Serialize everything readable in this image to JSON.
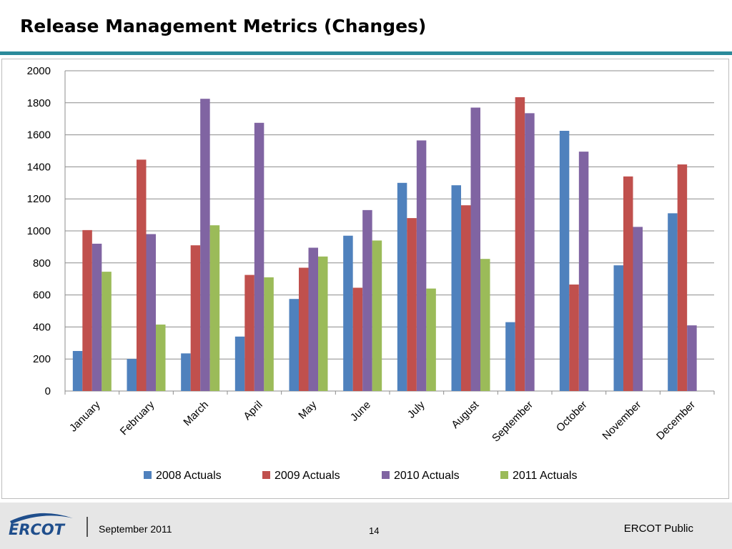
{
  "slide": {
    "title": "Release Management Metrics (Changes)"
  },
  "footer": {
    "logo_text": "ERCOT",
    "date": "September 2011",
    "page_number": "14",
    "classification": "ERCOT Public"
  },
  "colors": {
    "accent_rule": "#2b8a9a",
    "logo_blue": "#1f4e8c"
  },
  "chart_data": {
    "type": "bar",
    "title": "",
    "xlabel": "",
    "ylabel": "",
    "ylim": [
      0,
      2000
    ],
    "yticks": [
      0,
      200,
      400,
      600,
      800,
      1000,
      1200,
      1400,
      1600,
      1800,
      2000
    ],
    "grid": true,
    "legend_position": "bottom",
    "categories": [
      "January",
      "February",
      "March",
      "April",
      "May",
      "June",
      "July",
      "August",
      "September",
      "October",
      "November",
      "December"
    ],
    "series": [
      {
        "name": "2008 Actuals",
        "color": "#4f81bd",
        "values": [
          250,
          200,
          235,
          340,
          575,
          970,
          1300,
          1285,
          430,
          1625,
          785,
          1110
        ]
      },
      {
        "name": "2009 Actuals",
        "color": "#c0504d",
        "values": [
          1005,
          1445,
          910,
          725,
          770,
          645,
          1080,
          1160,
          1835,
          665,
          1340,
          1415
        ]
      },
      {
        "name": "2010 Actuals",
        "color": "#8064a2",
        "values": [
          920,
          980,
          1825,
          1675,
          895,
          1130,
          1565,
          1770,
          1735,
          1495,
          1025,
          410
        ]
      },
      {
        "name": "2011 Actuals",
        "color": "#9bbb59",
        "values": [
          745,
          415,
          1035,
          710,
          840,
          940,
          640,
          825,
          null,
          null,
          null,
          null
        ]
      }
    ]
  }
}
